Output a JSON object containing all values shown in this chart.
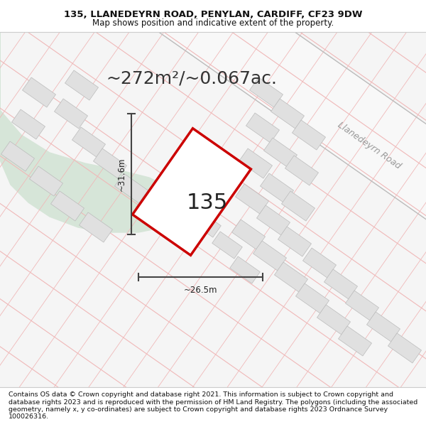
{
  "title_line1": "135, LLANEDEYRN ROAD, PENYLAN, CARDIFF, CF23 9DW",
  "title_line2": "Map shows position and indicative extent of the property.",
  "area_text": "~272m²/~0.067ac.",
  "width_label": "~26.5m",
  "height_label": "~31.6m",
  "number_label": "135",
  "road_label": "Llanedeyrn Road",
  "footer_text": "Contains OS data © Crown copyright and database right 2021. This information is subject to Crown copyright and database rights 2023 and is reproduced with the permission of HM Land Registry. The polygons (including the associated geometry, namely x, y co-ordinates) are subject to Crown copyright and database rights 2023 Ordnance Survey 100026316.",
  "map_bg": "#f5f5f5",
  "green_color": "#d6e5d8",
  "plot_outline_color": "#cc0000",
  "plot_fill_color": "#ffffff",
  "grid_line_color": "#f0b8b8",
  "road_line_color": "#cccccc",
  "block_color": "#e0e0e0",
  "block_outline_color": "#bbbbbb",
  "dim_line_color": "#444444",
  "title_fontsize": 9.5,
  "subtitle_fontsize": 8.5,
  "area_fontsize": 18,
  "label_fontsize": 8.5,
  "number_fontsize": 22,
  "footer_fontsize": 6.8,
  "road_label_fontsize": 9
}
